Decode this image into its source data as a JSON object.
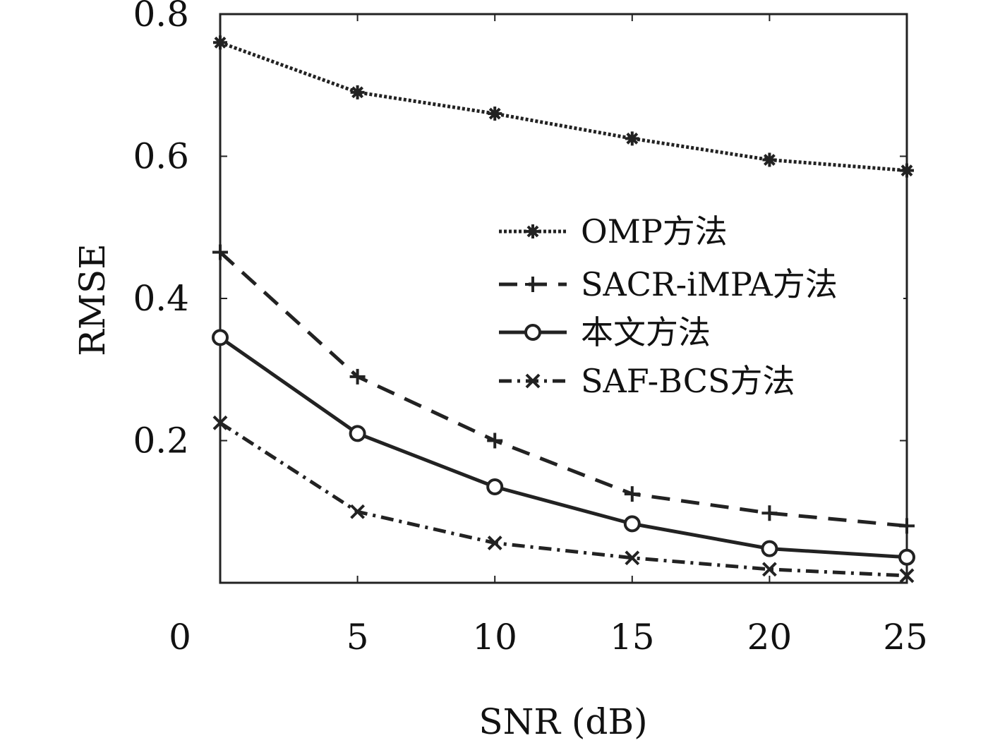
{
  "chart_data": {
    "type": "line",
    "title": "",
    "xlabel": "SNR (dB)",
    "ylabel": "RMSE",
    "x": [
      0,
      5,
      10,
      15,
      20,
      25
    ],
    "xlim": [
      0,
      25
    ],
    "ylim": [
      0,
      0.8
    ],
    "x_tick_labels": [
      "0",
      "5",
      "10",
      "15",
      "20",
      "25"
    ],
    "y_ticks": [
      0.2,
      0.4,
      0.6,
      0.8
    ],
    "y_tick_labels": [
      "0.2",
      "0.4",
      "0.6",
      "0.8"
    ],
    "grid": false,
    "legend_position": "right",
    "series": [
      {
        "name": "OMP方法",
        "values": [
          0.76,
          0.69,
          0.66,
          0.625,
          0.595,
          0.58
        ],
        "line_style": "dotted",
        "marker": "asterisk",
        "color": "#222222"
      },
      {
        "name": "SACR-iMPA方法",
        "values": [
          0.465,
          0.29,
          0.2,
          0.125,
          0.098,
          0.08
        ],
        "line_style": "dashed",
        "marker": "plus",
        "color": "#222222"
      },
      {
        "name": "本文方法",
        "values": [
          0.345,
          0.21,
          0.135,
          0.083,
          0.048,
          0.036
        ],
        "line_style": "solid",
        "marker": "circle",
        "color": "#222222"
      },
      {
        "name": "SAF-BCS方法",
        "values": [
          0.225,
          0.1,
          0.056,
          0.035,
          0.019,
          0.01
        ],
        "line_style": "dashdot",
        "marker": "cross",
        "color": "#222222"
      }
    ]
  }
}
